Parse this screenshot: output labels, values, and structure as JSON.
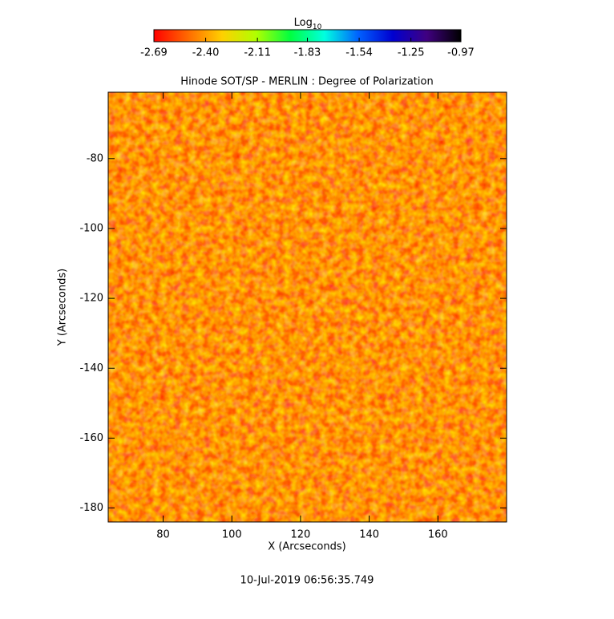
{
  "chart_data": {
    "type": "heatmap",
    "title": "Hinode SOT/SP - MERLIN : Degree of Polarization",
    "x_label": "X (Arcseconds)",
    "y_label": "Y (Arcseconds)",
    "footer": "10-Jul-2019 06:56:35.749",
    "xlim": [
      64,
      180
    ],
    "xticks": [
      80,
      100,
      120,
      140,
      160
    ],
    "ylim": [
      -184,
      -61
    ],
    "yticks": [
      -180,
      -160,
      -140,
      -120,
      -100,
      -80
    ],
    "colorbar": {
      "title": "Log",
      "title_subscript": "10",
      "lim": [
        -2.69,
        -0.97
      ],
      "ticks": [
        -2.69,
        {
          "value": -2.4,
          "label": "-2.40"
        },
        -2.11,
        -1.83,
        -1.54,
        -1.25,
        -0.97
      ],
      "colormap": [
        "#ff0000",
        "#ff6a00",
        "#ffd000",
        "#b0ff00",
        "#00ff40",
        "#00ffe0",
        "#0060ff",
        "#0000d0",
        "#400080",
        "#000000"
      ]
    }
  }
}
